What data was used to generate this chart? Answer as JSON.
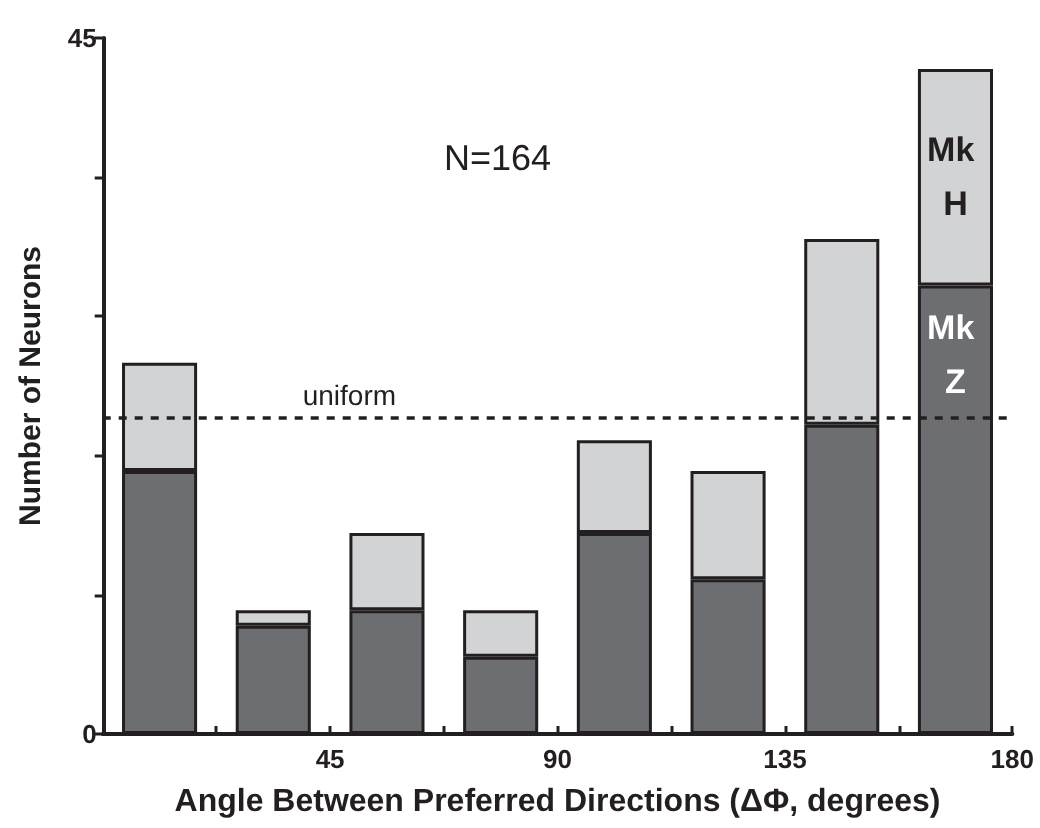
{
  "chart_data": {
    "type": "bar",
    "stacked": true,
    "xlabel": "Angle Between Preferred Directions (ΔΦ, degrees)",
    "ylabel": "Number of Neurons",
    "x": [
      11.25,
      33.75,
      56.25,
      78.75,
      101.25,
      123.75,
      146.25,
      168.75
    ],
    "series": [
      {
        "name": "Mk Z",
        "color": "#6d6e71",
        "values": [
          17,
          7,
          8,
          5,
          13,
          10,
          20,
          29
        ]
      },
      {
        "name": "Mk H",
        "color": "#d1d3d4",
        "values": [
          7,
          1,
          5,
          3,
          6,
          7,
          12,
          14
        ]
      }
    ],
    "xlim": [
      0,
      180
    ],
    "xticks": [
      {
        "value": 22.5,
        "label": null
      },
      45,
      {
        "value": 67.5,
        "label": null
      },
      90,
      {
        "value": 112.5,
        "label": null
      },
      135,
      {
        "value": 157.5,
        "label": null
      },
      180
    ],
    "ylim": [
      0,
      45
    ],
    "yticks": [
      0,
      {
        "value": 9,
        "label": null
      },
      {
        "value": 18,
        "label": null
      },
      {
        "value": 27,
        "label": null
      },
      {
        "value": 36,
        "label": null
      },
      45
    ],
    "ref_lines": [
      {
        "axis": "y",
        "value": 20.5,
        "label": "uniform",
        "color": "#231f20",
        "line_style": "dashed"
      }
    ],
    "annotations": [
      "N=164"
    ],
    "grid": false,
    "legend": false
  }
}
